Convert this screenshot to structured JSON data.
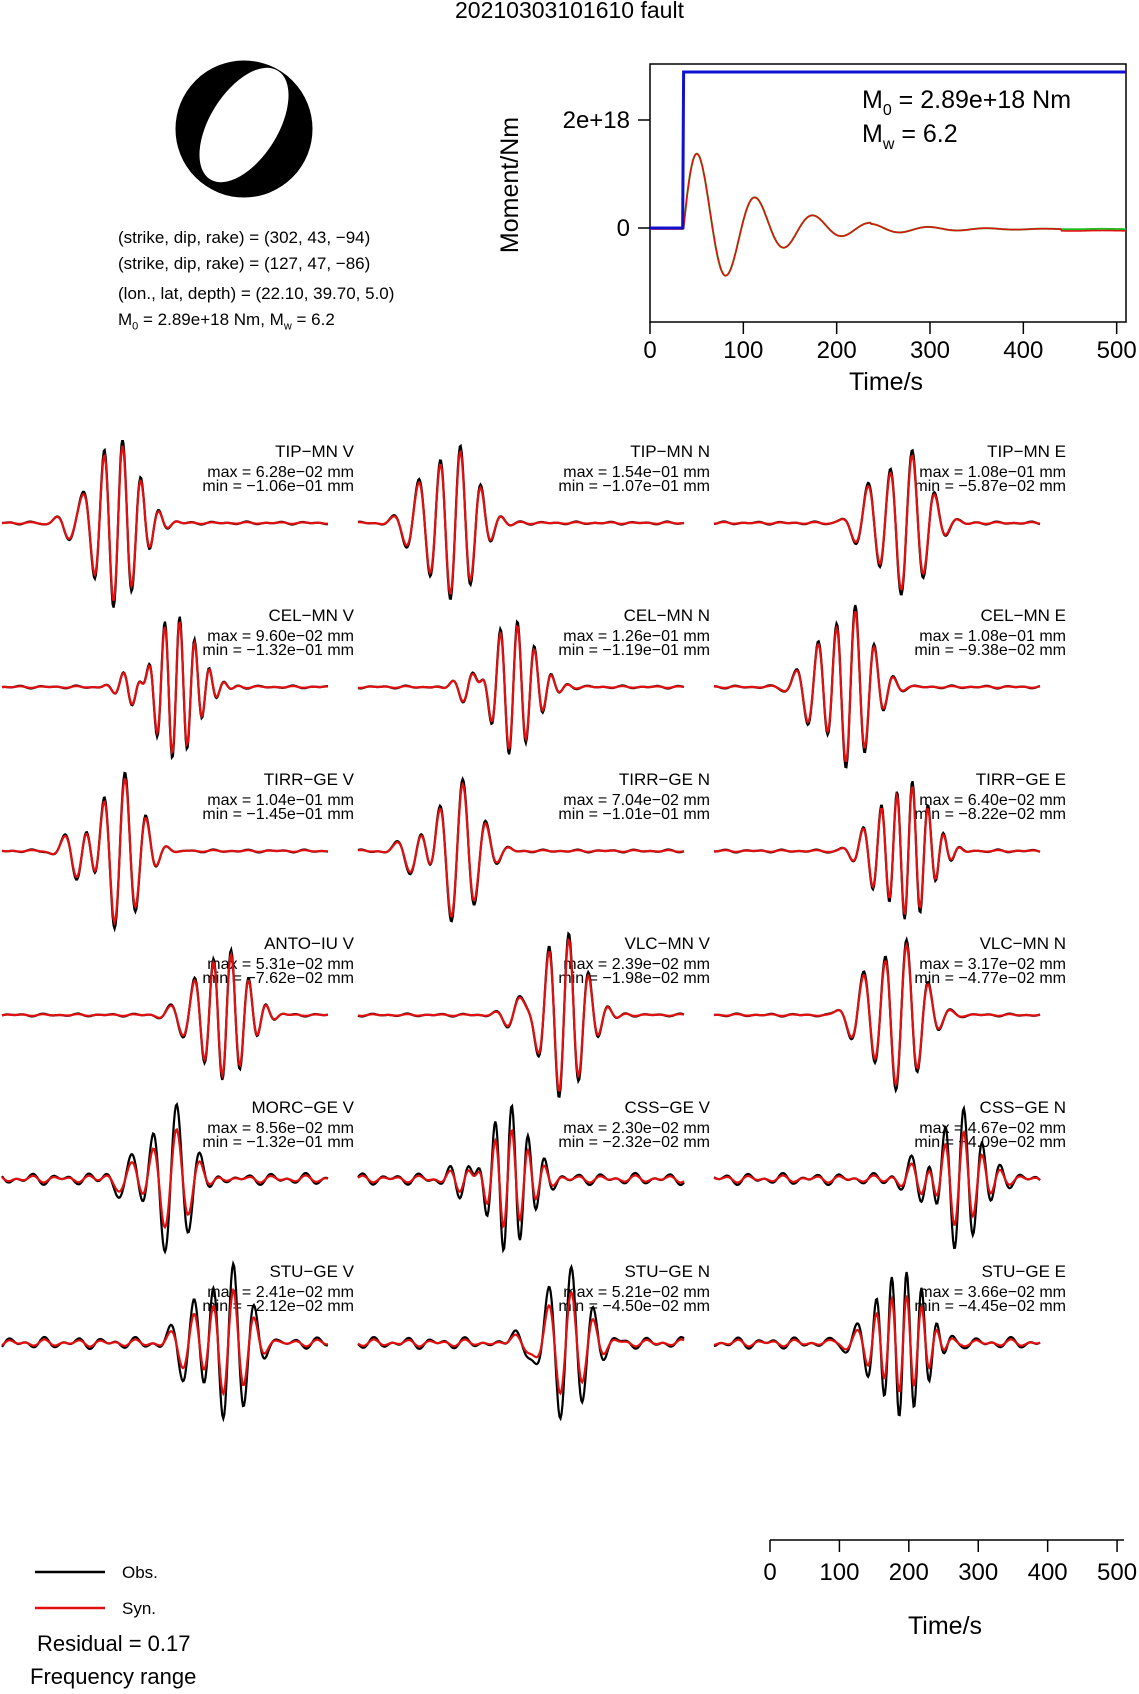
{
  "header": {
    "title": "20210303101610 fault"
  },
  "solution": {
    "line1": "(strike, dip, rake) = (302, 43, −94)",
    "line2": "(strike, dip, rake) = (127, 47, −86)",
    "line3": "(lon., lat, depth) = (22.10, 39.70, 5.0)",
    "m0_text": "M",
    "m0_sub": "0",
    "m0_val": " = 2.89e+18 Nm, M",
    "mw_sub": "w",
    "mw_val": " = 6.2"
  },
  "moment_plot": {
    "ylabel": "Moment/Nm",
    "xlabel": "Time/s",
    "m0_label": "M",
    "m0_sub": "0",
    "m0_value": " = 2.89e+18 Nm",
    "mw_label": "M",
    "mw_sub": "w",
    "mw_value": " = 6.2",
    "yticks": [
      "0",
      "2e+18"
    ],
    "xticks": [
      "0",
      "100",
      "200",
      "300",
      "400",
      "500"
    ]
  },
  "waveforms": {
    "xlabel": "Time/s",
    "xticks": [
      "0",
      "100",
      "200",
      "300",
      "400",
      "500"
    ],
    "panels": [
      {
        "name": "TIP−MN V",
        "max": "max = 6.28e−02 mm",
        "min": "min = −1.06e−01 mm"
      },
      {
        "name": "TIP−MN N",
        "max": "max = 1.54e−01 mm",
        "min": "min = −1.07e−01 mm"
      },
      {
        "name": "TIP−MN E",
        "max": "max = 1.08e−01 mm",
        "min": "min = −5.87e−02 mm"
      },
      {
        "name": "CEL−MN V",
        "max": "max = 9.60e−02 mm",
        "min": "min = −1.32e−01 mm"
      },
      {
        "name": "CEL−MN N",
        "max": "max = 1.26e−01 mm",
        "min": "min = −1.19e−01 mm"
      },
      {
        "name": "CEL−MN E",
        "max": "max = 1.08e−01 mm",
        "min": "min = −9.38e−02 mm"
      },
      {
        "name": "TIRR−GE V",
        "max": "max = 1.04e−01 mm",
        "min": "min = −1.45e−01 mm"
      },
      {
        "name": "TIRR−GE N",
        "max": "max = 7.04e−02 mm",
        "min": "min = −1.01e−01 mm"
      },
      {
        "name": "TIRR−GE E",
        "max": "max = 6.40e−02 mm",
        "min": "min = −8.22e−02 mm"
      },
      {
        "name": "ANTO−IU V",
        "max": "max = 5.31e−02 mm",
        "min": "min = −7.62e−02 mm"
      },
      {
        "name": "VLC−MN V",
        "max": "max = 2.39e−02 mm",
        "min": "min = −1.98e−02 mm"
      },
      {
        "name": "VLC−MN N",
        "max": "max = 3.17e−02 mm",
        "min": "min = −4.77e−02 mm"
      },
      {
        "name": "MORC−GE V",
        "max": "max = 8.56e−02 mm",
        "min": "min = −1.32e−01 mm"
      },
      {
        "name": "CSS−GE V",
        "max": "max = 2.30e−02 mm",
        "min": "min = −2.32e−02 mm"
      },
      {
        "name": "CSS−GE N",
        "max": "max = 4.67e−02 mm",
        "min": "min = −4.09e−02 mm"
      },
      {
        "name": "STU−GE V",
        "max": "max = 2.41e−02 mm",
        "min": "min = −2.12e−02 mm"
      },
      {
        "name": "STU−GE N",
        "max": "max = 5.21e−02 mm",
        "min": "min = −4.50e−02 mm"
      },
      {
        "name": "STU−GE E",
        "max": "max = 3.66e−02 mm",
        "min": "min = −4.45e−02 mm"
      }
    ]
  },
  "legend": {
    "obs": "Obs.",
    "syn": "Syn.",
    "residual": "Residual = 0.17",
    "freq": "Frequency range"
  },
  "colors": {
    "obs": "#000000",
    "syn": "#e01010",
    "moment": "#1010d0",
    "stf_green": "#20c020"
  },
  "chart_data": [
    {
      "type": "line",
      "title": "",
      "xlabel": "Time/s",
      "ylabel": "Moment/Nm",
      "xlim": [
        0,
        510
      ],
      "series": [
        {
          "name": "",
          "x": [
            0,
            35,
            36,
            40,
            510
          ],
          "y": [
            0,
            0,
            2.89e+18,
            2.89e+18,
            2.89e+18
          ]
        }
      ]
    },
    {
      "type": "line",
      "title": "",
      "xlabel": "Time/s",
      "xlim": [
        0,
        510
      ],
      "series": [
        {
          "name": "Obs.",
          "values": []
        },
        {
          "name": "Syn.",
          "values": []
        }
      ]
    }
  ]
}
